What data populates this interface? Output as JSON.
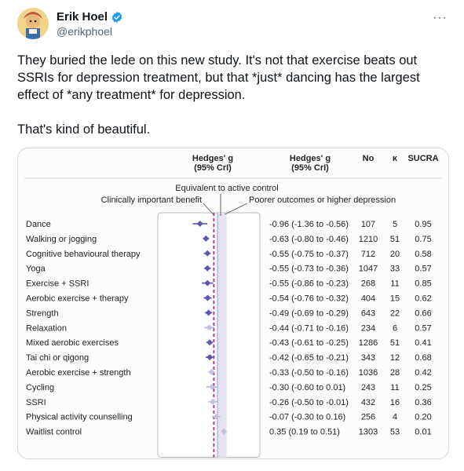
{
  "tweet": {
    "author_name": "Erik Hoel",
    "author_handle": "@erikphoel",
    "more_label": "···",
    "paragraphs": [
      "They buried the lede on this new study. It's not that exercise beats out SSRIs for depression treatment, but that *just* dancing  has the largest effect of *any treatment* for depression.",
      "That's kind of beautiful."
    ]
  },
  "chart_data": {
    "type": "forest",
    "columns": {
      "estimate_header": [
        "Hedges' g",
        "(95% CrI)"
      ],
      "ci_header": [
        "Hedges' g",
        "(95% CrI)"
      ],
      "n_header": "No",
      "k_header": "κ",
      "sucra_header": "SUCRA"
    },
    "annotations": {
      "equivalent": "Equivalent to active control",
      "clinical": "Clinically important benefit",
      "poorer": "Poorer outcomes or higher depression"
    },
    "x_ticks": [
      "-1.5",
      "-1.0",
      "-0.5",
      "0",
      "0.5",
      "1.5"
    ],
    "x_tick_values": [
      -1.5,
      -1.0,
      -0.5,
      0,
      0.5,
      1.5
    ],
    "xlim": [
      -1.5,
      1.5
    ],
    "clinical_threshold": -0.2,
    "rows": [
      {
        "label": "Dance",
        "g": -0.96,
        "lo": -1.36,
        "hi": -0.56,
        "ci_text": "-0.96 (-1.36 to -0.56)",
        "n": "107",
        "k": "5",
        "sucra": "0.95"
      },
      {
        "label": "Walking or jogging",
        "g": -0.63,
        "lo": -0.8,
        "hi": -0.46,
        "ci_text": "-0.63 (-0.80 to -0.46)",
        "n": "1210",
        "k": "51",
        "sucra": "0.75"
      },
      {
        "label": "Cognitive behavioural therapy",
        "g": -0.55,
        "lo": -0.75,
        "hi": -0.37,
        "ci_text": "-0.55 (-0.75 to -0.37)",
        "n": "712",
        "k": "20",
        "sucra": "0.58"
      },
      {
        "label": "Yoga",
        "g": -0.55,
        "lo": -0.73,
        "hi": -0.36,
        "ci_text": "-0.55 (-0.73 to -0.36)",
        "n": "1047",
        "k": "33",
        "sucra": "0.57"
      },
      {
        "label": "Exercise + SSRI",
        "g": -0.55,
        "lo": -0.86,
        "hi": -0.23,
        "ci_text": "-0.55 (-0.86 to -0.23)",
        "n": "268",
        "k": "11",
        "sucra": "0.85"
      },
      {
        "label": "Aerobic exercise + therapy",
        "g": -0.54,
        "lo": -0.76,
        "hi": -0.32,
        "ci_text": "-0.54 (-0.76 to -0.32)",
        "n": "404",
        "k": "15",
        "sucra": "0.62"
      },
      {
        "label": "Strength",
        "g": -0.49,
        "lo": -0.69,
        "hi": -0.29,
        "ci_text": "-0.49 (-0.69 to -0.29)",
        "n": "643",
        "k": "22",
        "sucra": "0.66"
      },
      {
        "label": "Relaxation",
        "g": -0.44,
        "lo": -0.71,
        "hi": -0.16,
        "ci_text": "-0.44 (-0.71 to -0.16)",
        "n": "234",
        "k": "6",
        "sucra": "0.57"
      },
      {
        "label": "Mixed aerobic exercises",
        "g": -0.43,
        "lo": -0.61,
        "hi": -0.25,
        "ci_text": "-0.43 (-0.61 to -0.25)",
        "n": "1286",
        "k": "51",
        "sucra": "0.41"
      },
      {
        "label": "Tai chi or qigong",
        "g": -0.42,
        "lo": -0.65,
        "hi": -0.21,
        "ci_text": "-0.42 (-0.65 to -0.21)",
        "n": "343",
        "k": "12",
        "sucra": "0.68"
      },
      {
        "label": "Aerobic exercise + strength",
        "g": -0.33,
        "lo": -0.5,
        "hi": -0.16,
        "ci_text": "-0.33 (-0.50 to -0.16)",
        "n": "1036",
        "k": "28",
        "sucra": "0.42"
      },
      {
        "label": "Cycling",
        "g": -0.3,
        "lo": -0.6,
        "hi": 0.01,
        "ci_text": "-0.30 (-0.60 to 0.01)",
        "n": "243",
        "k": "11",
        "sucra": "0.25"
      },
      {
        "label": "SSRI",
        "g": -0.26,
        "lo": -0.5,
        "hi": -0.01,
        "ci_text": "-0.26 (-0.50 to -0.01)",
        "n": "432",
        "k": "16",
        "sucra": "0.36"
      },
      {
        "label": "Physical activity counselling",
        "g": -0.07,
        "lo": -0.3,
        "hi": 0.16,
        "ci_text": "-0.07 (-0.30 to 0.16)",
        "n": "256",
        "k": "4",
        "sucra": "0.20"
      },
      {
        "label": "Waitlist control",
        "g": 0.35,
        "lo": 0.19,
        "hi": 0.51,
        "ci_text": "0.35 (0.19 to 0.51)",
        "n": "1303",
        "k": "53",
        "sucra": "0.01"
      }
    ]
  }
}
